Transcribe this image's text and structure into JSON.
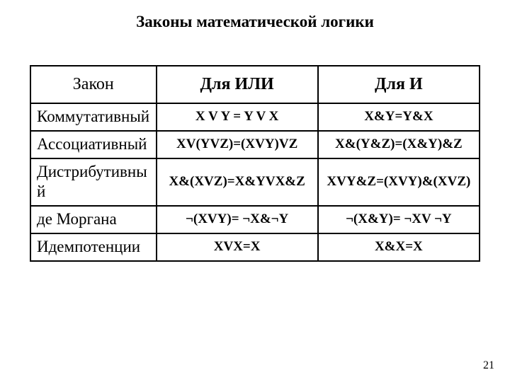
{
  "title": "Законы математической логики",
  "page_number": "21",
  "headers": {
    "law": "Закон",
    "or": "Для ИЛИ",
    "and": "Для И"
  },
  "rows": [
    {
      "name": "Коммутативный",
      "or": "X V Y = Y V X",
      "and": "X&Y=Y&X"
    },
    {
      "name": "Ассоциативный",
      "or": "XV(YVZ)=(XVY)VZ",
      "and": "X&(Y&Z)=(X&Y)&Z"
    },
    {
      "name": "Дистрибутивный",
      "or": "X&(XVZ)=X&YVX&Z",
      "and": "XVY&Z=(XVY)&(XVZ)"
    },
    {
      "name": "де Моргана",
      "or": "¬(XVY)= ¬X&¬Y",
      "and": "¬(X&Y)= ¬XV ¬Y"
    },
    {
      "name": "Идемпотенции",
      "or": "XVX=X",
      "and": "X&X=X"
    }
  ]
}
